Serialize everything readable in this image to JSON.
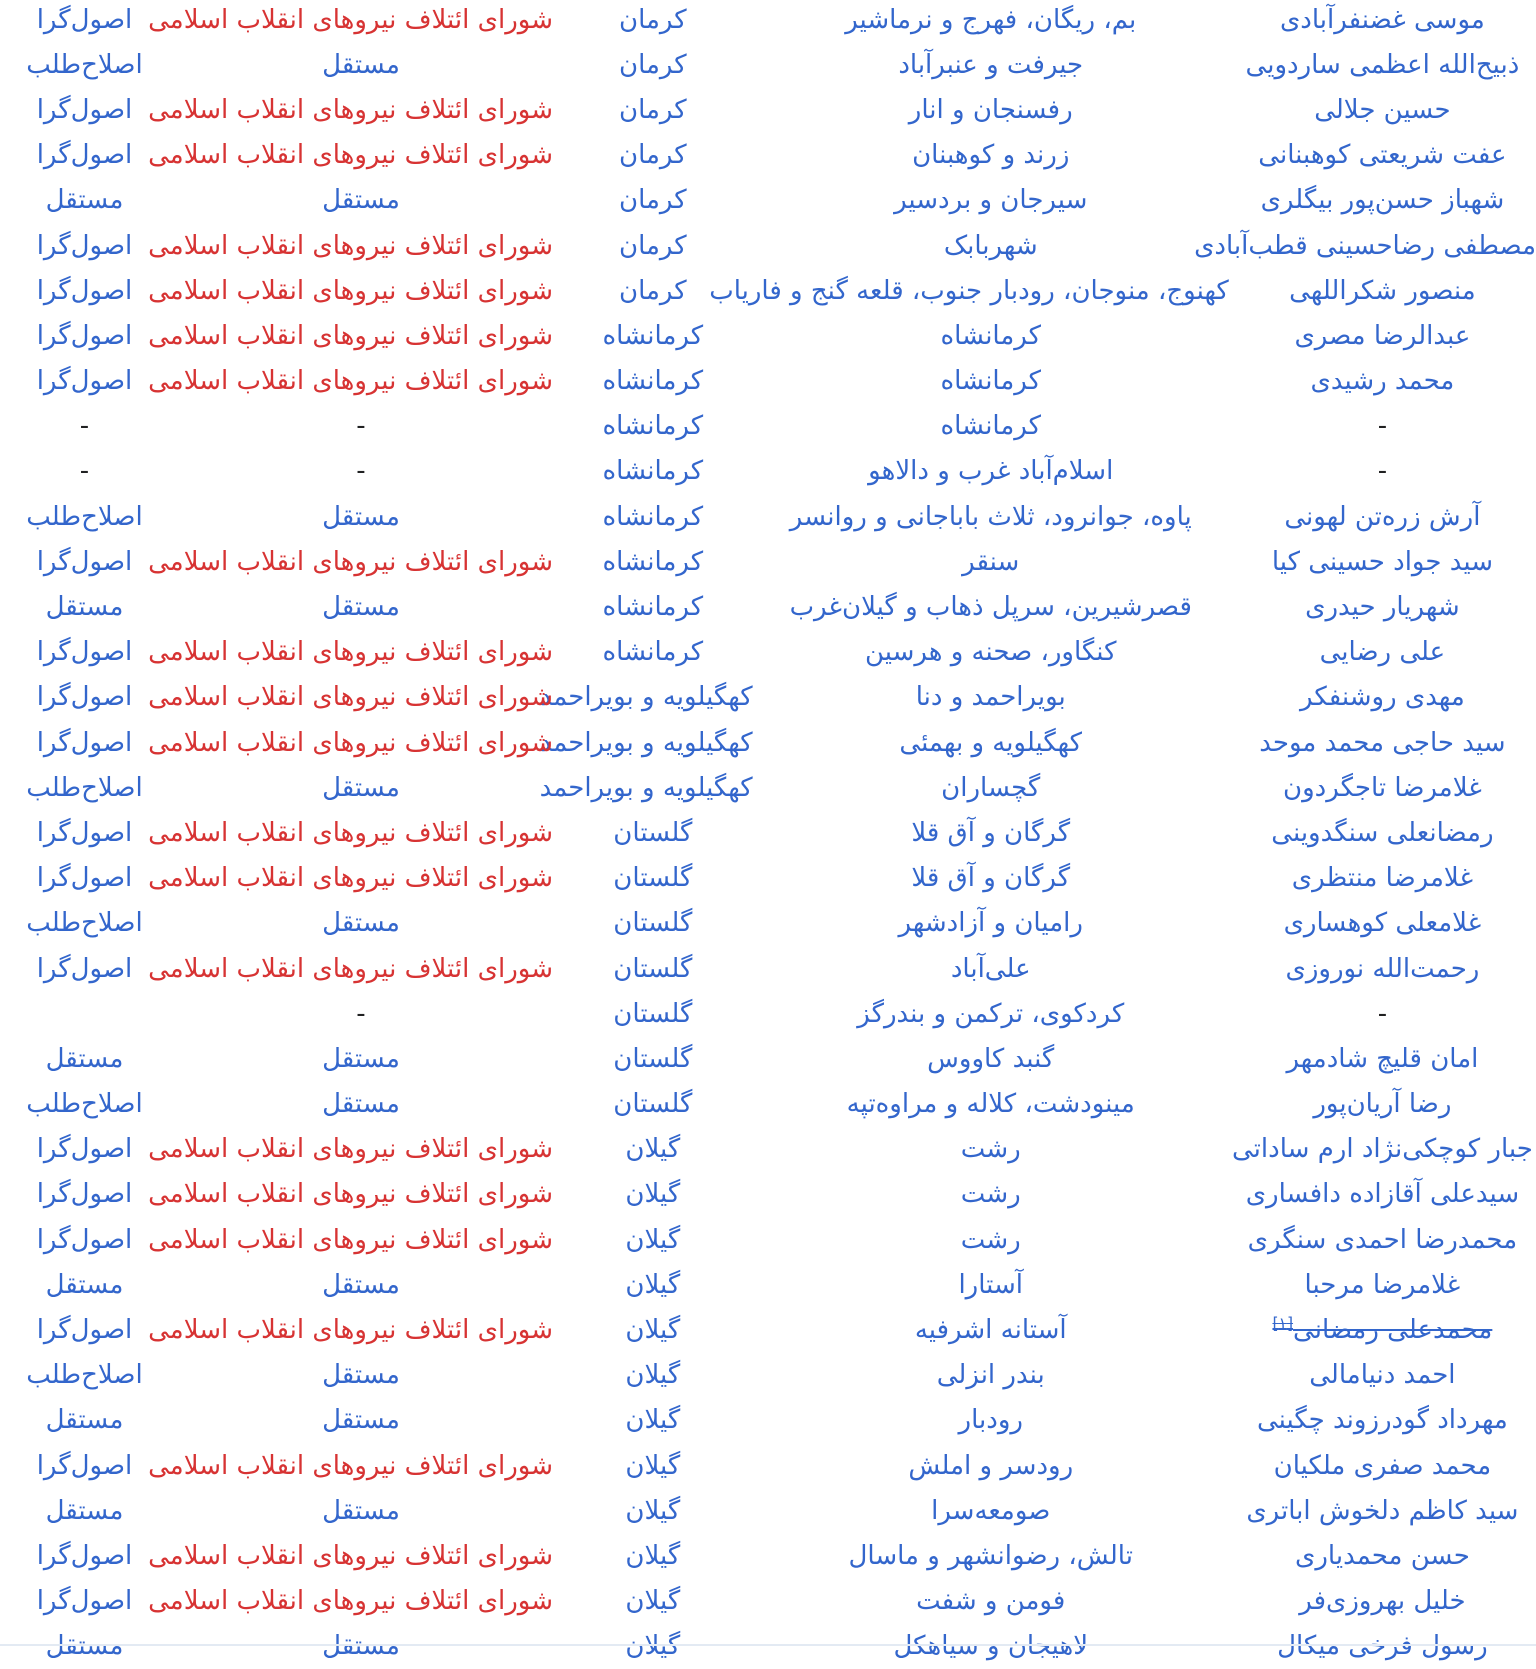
{
  "page": {
    "direction": "rtl",
    "background": "#ffffff"
  },
  "colors": {
    "link_blue": "#3366cc",
    "link_red": "#d73333",
    "plain_text": "#202122",
    "divider": "#e3eaf3"
  },
  "strings": {
    "coalition_phrase": "شورای ائتلاف نیروهای انقلاب اسلامی",
    "independent": "مستقل",
    "dash": "-",
    "footnote_marker": "[۱]"
  },
  "rows": [
    {
      "name": "موسی غضنفرآبادی",
      "struck": false,
      "footnote": false,
      "constituency": "بم، ریگان، فهرج و نرماشیر",
      "province": "کرمان",
      "coalition": "شورای ائتلاف نیروهای انقلاب اسلامی",
      "faction": "اصول‌گرا"
    },
    {
      "name": "ذبیح‌الله اعظمی ساردویی",
      "struck": false,
      "footnote": false,
      "constituency": "جیرفت و عنبرآباد",
      "province": "کرمان",
      "coalition": "مستقل",
      "faction": "اصلاح‌طلب"
    },
    {
      "name": "حسین جلالی",
      "struck": false,
      "footnote": false,
      "constituency": "رفسنجان و انار",
      "province": "کرمان",
      "coalition": "شورای ائتلاف نیروهای انقلاب اسلامی",
      "faction": "اصول‌گرا"
    },
    {
      "name": "عفت شریعتی کوهبنانی",
      "struck": false,
      "footnote": false,
      "constituency": "زرند و کوهبنان",
      "province": "کرمان",
      "coalition": "شورای ائتلاف نیروهای انقلاب اسلامی",
      "faction": "اصول‌گرا"
    },
    {
      "name": "شهباز حسن‌پور بیگلری",
      "struck": false,
      "footnote": false,
      "constituency": "سیرجان و بردسیر",
      "province": "کرمان",
      "coalition": "مستقل",
      "faction": "مستقل"
    },
    {
      "name": "مصطفی رضاحسینی قطب‌آبادی",
      "struck": false,
      "footnote": false,
      "constituency": "شهربابک",
      "province": "کرمان",
      "coalition": "شورای ائتلاف نیروهای انقلاب اسلامی",
      "faction": "اصول‌گرا"
    },
    {
      "name": "منصور شکراللهی",
      "struck": false,
      "footnote": false,
      "constituency": "کهنوج، منوجان، رودبار جنوب، قلعه گنج و فاریاب",
      "province": "کرمان",
      "coalition": "شورای ائتلاف نیروهای انقلاب اسلامی",
      "faction": "اصول‌گرا"
    },
    {
      "name": "عبدالرضا مصری",
      "struck": false,
      "footnote": false,
      "constituency": "کرمانشاه",
      "province": "کرمانشاه",
      "coalition": "شورای ائتلاف نیروهای انقلاب اسلامی",
      "faction": "اصول‌گرا"
    },
    {
      "name": "محمد رشیدی",
      "struck": false,
      "footnote": false,
      "constituency": "کرمانشاه",
      "province": "کرمانشاه",
      "coalition": "شورای ائتلاف نیروهای انقلاب اسلامی",
      "faction": "اصول‌گرا"
    },
    {
      "name": "-",
      "struck": false,
      "footnote": false,
      "constituency": "کرمانشاه",
      "province": "کرمانشاه",
      "coalition": "-",
      "faction": "-"
    },
    {
      "name": "-",
      "struck": false,
      "footnote": false,
      "constituency": "اسلام‌آباد غرب و دالاهو",
      "province": "کرمانشاه",
      "coalition": "-",
      "faction": "-"
    },
    {
      "name": "آرش زره‌تن لهونی",
      "struck": false,
      "footnote": false,
      "constituency": "پاوه، جوانرود، ثلاث باباجانی و روانسر",
      "province": "کرمانشاه",
      "coalition": "مستقل",
      "faction": "اصلاح‌طلب"
    },
    {
      "name": "سید جواد حسینی کیا",
      "struck": false,
      "footnote": false,
      "constituency": "سنقر",
      "province": "کرمانشاه",
      "coalition": "شورای ائتلاف نیروهای انقلاب اسلامی",
      "faction": "اصول‌گرا"
    },
    {
      "name": "شهریار حیدری",
      "struck": false,
      "footnote": false,
      "constituency": "قصرشیرین، سرپل ذهاب و گیلان‌غرب",
      "province": "کرمانشاه",
      "coalition": "مستقل",
      "faction": "مستقل"
    },
    {
      "name": "علی رضایی",
      "struck": false,
      "footnote": false,
      "constituency": "کنگاور، صحنه و هرسین",
      "province": "کرمانشاه",
      "coalition": "شورای ائتلاف نیروهای انقلاب اسلامی",
      "faction": "اصول‌گرا"
    },
    {
      "name": "مهدی روشنفکر",
      "struck": false,
      "footnote": false,
      "constituency": "بویراحمد و دنا",
      "province": "کهگیلویه و بویراحمد",
      "coalition": "شورای ائتلاف نیروهای انقلاب اسلامی",
      "faction": "اصول‌گرا"
    },
    {
      "name": "سید حاجی محمد موحد",
      "struck": false,
      "footnote": false,
      "constituency": "کهگیلویه و بهمئی",
      "province": "کهگیلویه و بویراحمد",
      "coalition": "شورای ائتلاف نیروهای انقلاب اسلامی",
      "faction": "اصول‌گرا"
    },
    {
      "name": "غلامرضا تاجگردون",
      "struck": false,
      "footnote": false,
      "constituency": "گچساران",
      "province": "کهگیلویه و بویراحمد",
      "coalition": "مستقل",
      "faction": "اصلاح‌طلب"
    },
    {
      "name": "رمضانعلی سنگدوینی",
      "struck": false,
      "footnote": false,
      "constituency": "گرگان و آق قلا",
      "province": "گلستان",
      "coalition": "شورای ائتلاف نیروهای انقلاب اسلامی",
      "faction": "اصول‌گرا"
    },
    {
      "name": "غلامرضا منتظری",
      "struck": false,
      "footnote": false,
      "constituency": "گرگان و آق قلا",
      "province": "گلستان",
      "coalition": "شورای ائتلاف نیروهای انقلاب اسلامی",
      "faction": "اصول‌گرا"
    },
    {
      "name": "غلامعلی کوهساری",
      "struck": false,
      "footnote": false,
      "constituency": "رامیان و آزادشهر",
      "province": "گلستان",
      "coalition": "مستقل",
      "faction": "اصلاح‌طلب"
    },
    {
      "name": "رحمت‌الله نوروزی",
      "struck": false,
      "footnote": false,
      "constituency": "علی‌آباد",
      "province": "گلستان",
      "coalition": "شورای ائتلاف نیروهای انقلاب اسلامی",
      "faction": "اصول‌گرا"
    },
    {
      "name": "-",
      "struck": false,
      "footnote": false,
      "constituency": "کردکوی، ترکمن و بندرگز",
      "province": "گلستان",
      "coalition": "-",
      "faction": ""
    },
    {
      "name": "امان قلیچ شادمهر",
      "struck": false,
      "footnote": false,
      "constituency": "گنبد کاووس",
      "province": "گلستان",
      "coalition": "مستقل",
      "faction": "مستقل"
    },
    {
      "name": "رضا آریان‌پور",
      "struck": false,
      "footnote": false,
      "constituency": "مینودشت، کلاله و مراوه‌تپه",
      "province": "گلستان",
      "coalition": "مستقل",
      "faction": "اصلاح‌طلب"
    },
    {
      "name": "جبار کوچکی‌نژاد ارم ساداتی",
      "struck": false,
      "footnote": false,
      "constituency": "رشت",
      "province": "گیلان",
      "coalition": "شورای ائتلاف نیروهای انقلاب اسلامی",
      "faction": "اصول‌گرا"
    },
    {
      "name": "سیدعلی آقازاده دافساری",
      "struck": false,
      "footnote": false,
      "constituency": "رشت",
      "province": "گیلان",
      "coalition": "شورای ائتلاف نیروهای انقلاب اسلامی",
      "faction": "اصول‌گرا"
    },
    {
      "name": "محمدرضا احمدی سنگری",
      "struck": false,
      "footnote": false,
      "constituency": "رشت",
      "province": "گیلان",
      "coalition": "شورای ائتلاف نیروهای انقلاب اسلامی",
      "faction": "اصول‌گرا"
    },
    {
      "name": "غلامرضا مرحبا",
      "struck": false,
      "footnote": false,
      "constituency": "آستارا",
      "province": "گیلان",
      "coalition": "مستقل",
      "faction": "مستقل"
    },
    {
      "name": "محمدعلی رمضانی",
      "struck": true,
      "footnote": true,
      "constituency": "آستانه اشرفیه",
      "province": "گیلان",
      "coalition": "شورای ائتلاف نیروهای انقلاب اسلامی",
      "faction": "اصول‌گرا"
    },
    {
      "name": "احمد دنیامالی",
      "struck": false,
      "footnote": false,
      "constituency": "بندر انزلی",
      "province": "گیلان",
      "coalition": "مستقل",
      "faction": "اصلاح‌طلب"
    },
    {
      "name": "مهرداد گودرزوند چگینی",
      "struck": false,
      "footnote": false,
      "constituency": "رودبار",
      "province": "گیلان",
      "coalition": "مستقل",
      "faction": "مستقل"
    },
    {
      "name": "محمد صفری ملکیان",
      "struck": false,
      "footnote": false,
      "constituency": "رودسر و املش",
      "province": "گیلان",
      "coalition": "شورای ائتلاف نیروهای انقلاب اسلامی",
      "faction": "اصول‌گرا"
    },
    {
      "name": "سید کاظم دلخوش اباتری",
      "struck": false,
      "footnote": false,
      "constituency": "صومعه‌سرا",
      "province": "گیلان",
      "coalition": "مستقل",
      "faction": "مستقل"
    },
    {
      "name": "حسن محمدیاری",
      "struck": false,
      "footnote": false,
      "constituency": "تالش، رضوانشهر و ماسال",
      "province": "گیلان",
      "coalition": "شورای ائتلاف نیروهای انقلاب اسلامی",
      "faction": "اصول‌گرا"
    },
    {
      "name": "خلیل بهروزی‌فر",
      "struck": false,
      "footnote": false,
      "constituency": "فومن و شفت",
      "province": "گیلان",
      "coalition": "شورای ائتلاف نیروهای انقلاب اسلامی",
      "faction": "اصول‌گرا"
    },
    {
      "name": "رسول فرخی میکال",
      "struck": false,
      "footnote": false,
      "constituency": "لاهیجان و سیاهکل",
      "province": "گیلان",
      "coalition": "مستقل",
      "faction": "مستقل"
    }
  ]
}
